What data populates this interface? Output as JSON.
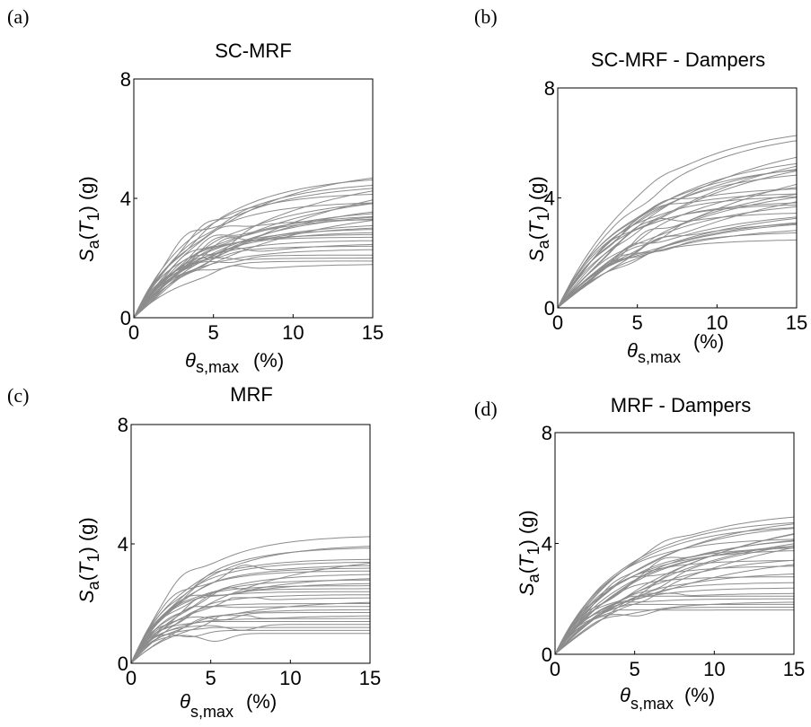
{
  "chart_data": [
    {
      "type": "line",
      "panel_label": "(a)",
      "title": "SC-MRF",
      "xlabel_symbol": "θ",
      "xlabel_sub": "s,max",
      "xlabel_unit": "(%)",
      "ylabel_S": "S",
      "ylabel_a": "a",
      "ylabel_open": "(",
      "ylabel_T": "T",
      "ylabel_1": "1",
      "ylabel_close": ")",
      "ylabel_unit": "(g)",
      "xlim": [
        0,
        15
      ],
      "ylim": [
        0,
        8
      ],
      "xticks": [
        "0",
        "5",
        "10",
        "15"
      ],
      "yticks": [
        "0",
        "4",
        "8"
      ],
      "line_color": "#8c8c8c",
      "plateaus": [
        1.8,
        1.9,
        2.0,
        2.1,
        2.3,
        2.4,
        2.5,
        2.6,
        2.7,
        2.8,
        2.9,
        3.0,
        3.1,
        3.2,
        3.3,
        3.4,
        3.5,
        3.6,
        3.7,
        3.8,
        3.9,
        4.0,
        4.1,
        4.2,
        4.3,
        4.5,
        4.6,
        4.8,
        5.0,
        5.1,
        5.2
      ],
      "curve_ends": [
        15,
        15,
        15,
        15,
        15,
        15,
        15,
        15,
        15,
        15,
        15,
        15,
        15,
        15,
        15,
        15,
        15,
        15,
        15,
        15,
        15,
        15,
        15,
        15,
        15,
        15,
        15,
        15,
        15,
        15,
        15
      ]
    },
    {
      "type": "line",
      "panel_label": "(b)",
      "title": "SC-MRF - Dampers",
      "xlabel_symbol": "θ",
      "xlabel_sub": "s,max",
      "xlabel_unit": "(%)",
      "ylabel_S": "S",
      "ylabel_a": "a",
      "ylabel_open": "(",
      "ylabel_T": "T",
      "ylabel_1": "1",
      "ylabel_close": ")",
      "ylabel_unit": "(g)",
      "xlim": [
        0,
        15
      ],
      "ylim": [
        0,
        8
      ],
      "xticks": [
        "0",
        "5",
        "10",
        "15"
      ],
      "yticks": [
        "0",
        "4",
        "8"
      ],
      "line_color": "#8c8c8c",
      "plateaus": [
        2.5,
        2.8,
        3.0,
        3.2,
        3.3,
        3.4,
        3.5,
        3.6,
        3.7,
        3.8,
        3.9,
        4.0,
        4.1,
        4.2,
        4.4,
        4.6,
        4.8,
        4.9,
        5.0,
        5.1,
        5.3,
        5.5,
        5.7,
        5.9,
        6.1,
        6.3,
        6.5,
        6.6,
        6.7
      ],
      "curve_ends": [
        15,
        15,
        15,
        15,
        15,
        15,
        15,
        15,
        15,
        15,
        15,
        15,
        15,
        15,
        15,
        15,
        15,
        15,
        15,
        15,
        15,
        15,
        15,
        15,
        15,
        15,
        15,
        15,
        15
      ]
    },
    {
      "type": "line",
      "panel_label": "(c)",
      "title": "MRF",
      "xlabel_symbol": "θ",
      "xlabel_sub": "s,max",
      "xlabel_unit": "(%)",
      "ylabel_S": "S",
      "ylabel_a": "a",
      "ylabel_open": "(",
      "ylabel_T": "T",
      "ylabel_1": "1",
      "ylabel_close": ")",
      "ylabel_unit": "(g)",
      "xlim": [
        0,
        15
      ],
      "ylim": [
        0,
        8
      ],
      "xticks": [
        "0",
        "5",
        "10",
        "15"
      ],
      "yticks": [
        "0",
        "4",
        "8"
      ],
      "line_color": "#8c8c8c",
      "plateaus": [
        1.0,
        1.1,
        1.2,
        1.3,
        1.4,
        1.5,
        1.6,
        1.7,
        1.8,
        1.9,
        2.0,
        2.1,
        2.2,
        2.3,
        2.4,
        2.5,
        2.6,
        2.7,
        2.8,
        2.9,
        3.0,
        3.1,
        3.2,
        3.3,
        3.4,
        3.5,
        3.7,
        3.9,
        4.0,
        4.3
      ],
      "curve_ends": [
        15,
        15,
        15,
        15,
        15,
        15,
        15,
        15,
        15,
        15,
        15,
        15,
        15,
        15,
        15,
        15,
        15,
        15,
        15,
        15,
        15,
        15,
        15,
        15,
        15,
        15,
        15,
        15,
        15,
        15
      ]
    },
    {
      "type": "line",
      "panel_label": "(d)",
      "title": "MRF - Dampers",
      "xlabel_symbol": "θ",
      "xlabel_sub": "s,max",
      "xlabel_unit": "(%)",
      "ylabel_S": "S",
      "ylabel_a": "a",
      "ylabel_open": "(",
      "ylabel_T": "T",
      "ylabel_1": "1",
      "ylabel_close": ")",
      "ylabel_unit": "(g)",
      "xlim": [
        0,
        15
      ],
      "ylim": [
        0,
        8
      ],
      "xticks": [
        "0",
        "5",
        "10",
        "15"
      ],
      "yticks": [
        "0",
        "4",
        "8"
      ],
      "line_color": "#8c8c8c",
      "plateaus": [
        1.6,
        1.7,
        1.8,
        1.9,
        2.0,
        2.1,
        2.2,
        2.4,
        2.6,
        2.8,
        3.0,
        3.2,
        3.4,
        3.6,
        3.7,
        3.8,
        3.9,
        4.0,
        4.1,
        4.2,
        4.3,
        4.4,
        4.5,
        4.6,
        4.7,
        4.8,
        4.9,
        5.0,
        5.1,
        5.2,
        5.3,
        5.4
      ],
      "curve_ends": [
        15,
        15,
        15,
        15,
        15,
        15,
        15,
        15,
        15,
        15,
        15,
        15,
        15,
        15,
        15,
        15,
        15,
        15,
        15,
        15,
        15,
        15,
        15,
        15,
        15,
        15,
        15,
        15,
        15,
        15,
        15,
        15
      ]
    }
  ]
}
